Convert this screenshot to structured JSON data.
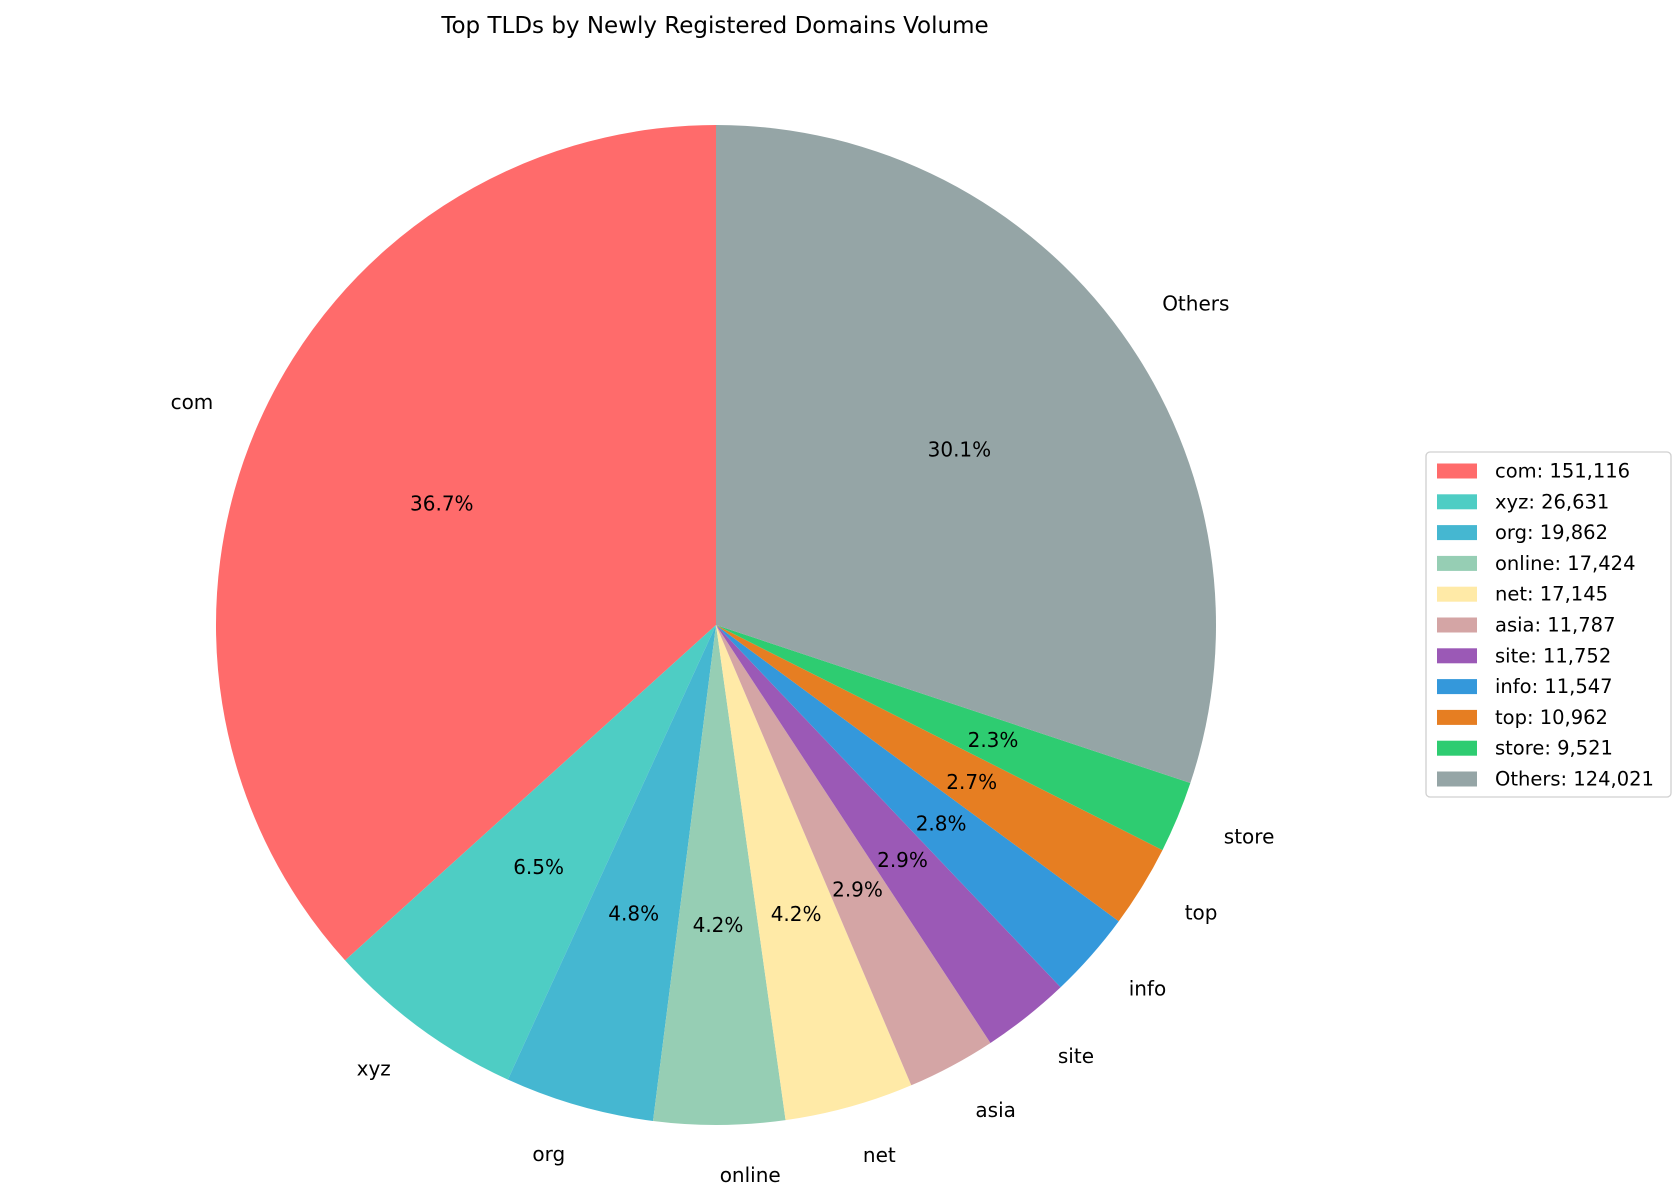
{
  "chart_data": {
    "type": "pie",
    "title": "Top TLDs by Newly Registered Domains Volume",
    "start_angle_deg": 90,
    "direction": "counterclockwise",
    "legend_placement": "center-right",
    "slices": [
      {
        "label": "com",
        "value": 151116,
        "pct_label": "36.7%",
        "legend": "com: 151,116",
        "color": "#ff6b6b"
      },
      {
        "label": "xyz",
        "value": 26631,
        "pct_label": "6.5%",
        "legend": "xyz: 26,631",
        "color": "#4ecdc4"
      },
      {
        "label": "org",
        "value": 19862,
        "pct_label": "4.8%",
        "legend": "org: 19,862",
        "color": "#45b7d1"
      },
      {
        "label": "online",
        "value": 17424,
        "pct_label": "4.2%",
        "legend": "online: 17,424",
        "color": "#96ceb4"
      },
      {
        "label": "net",
        "value": 17145,
        "pct_label": "4.2%",
        "legend": "net: 17,145",
        "color": "#ffeaa7"
      },
      {
        "label": "asia",
        "value": 11787,
        "pct_label": "2.9%",
        "legend": "asia: 11,787",
        "color": "#d4a5a5"
      },
      {
        "label": "site",
        "value": 11752,
        "pct_label": "2.9%",
        "legend": "site: 11,752",
        "color": "#9b59b6"
      },
      {
        "label": "info",
        "value": 11547,
        "pct_label": "2.8%",
        "legend": "info: 11,547",
        "color": "#3498db"
      },
      {
        "label": "top",
        "value": 10962,
        "pct_label": "2.7%",
        "legend": "top: 10,962",
        "color": "#e67e22"
      },
      {
        "label": "store",
        "value": 9521,
        "pct_label": "2.3%",
        "legend": "store: 9,521",
        "color": "#2ecc71"
      },
      {
        "label": "Others",
        "value": 124021,
        "pct_label": "30.1%",
        "legend": "Others: 124,021",
        "color": "#95a5a6"
      }
    ]
  }
}
